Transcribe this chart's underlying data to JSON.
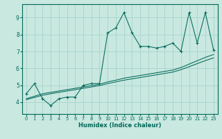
{
  "title": "",
  "xlabel": "Humidex (Indice chaleur)",
  "ylabel": "",
  "bg_color": "#c8e8e0",
  "grid_color": "#a8d4cc",
  "line_color": "#006858",
  "xlim": [
    -0.5,
    23.5
  ],
  "ylim": [
    3.3,
    9.8
  ],
  "xticks": [
    0,
    1,
    2,
    3,
    4,
    5,
    6,
    7,
    8,
    9,
    10,
    11,
    12,
    13,
    14,
    15,
    16,
    17,
    18,
    19,
    20,
    21,
    22,
    23
  ],
  "yticks": [
    4,
    5,
    6,
    7,
    8,
    9
  ],
  "x_data": [
    0,
    1,
    2,
    3,
    4,
    5,
    6,
    7,
    8,
    9,
    10,
    11,
    12,
    13,
    14,
    15,
    16,
    17,
    18,
    19,
    20,
    21,
    22,
    23
  ],
  "y_main": [
    4.5,
    5.1,
    4.2,
    3.8,
    4.2,
    4.3,
    4.3,
    5.0,
    5.1,
    5.1,
    8.1,
    8.4,
    9.3,
    8.1,
    7.3,
    7.3,
    7.2,
    7.3,
    7.5,
    7.0,
    9.3,
    7.5,
    9.3,
    7.1
  ],
  "y_trend1": [
    4.2,
    4.35,
    4.5,
    4.58,
    4.66,
    4.74,
    4.82,
    4.9,
    4.98,
    5.06,
    5.2,
    5.3,
    5.42,
    5.5,
    5.58,
    5.66,
    5.74,
    5.82,
    5.9,
    6.05,
    6.25,
    6.45,
    6.65,
    6.82
  ],
  "y_trend2": [
    4.15,
    4.28,
    4.41,
    4.5,
    4.58,
    4.66,
    4.74,
    4.82,
    4.9,
    4.98,
    5.1,
    5.2,
    5.3,
    5.38,
    5.46,
    5.54,
    5.62,
    5.7,
    5.78,
    5.92,
    6.1,
    6.28,
    6.46,
    6.62
  ]
}
